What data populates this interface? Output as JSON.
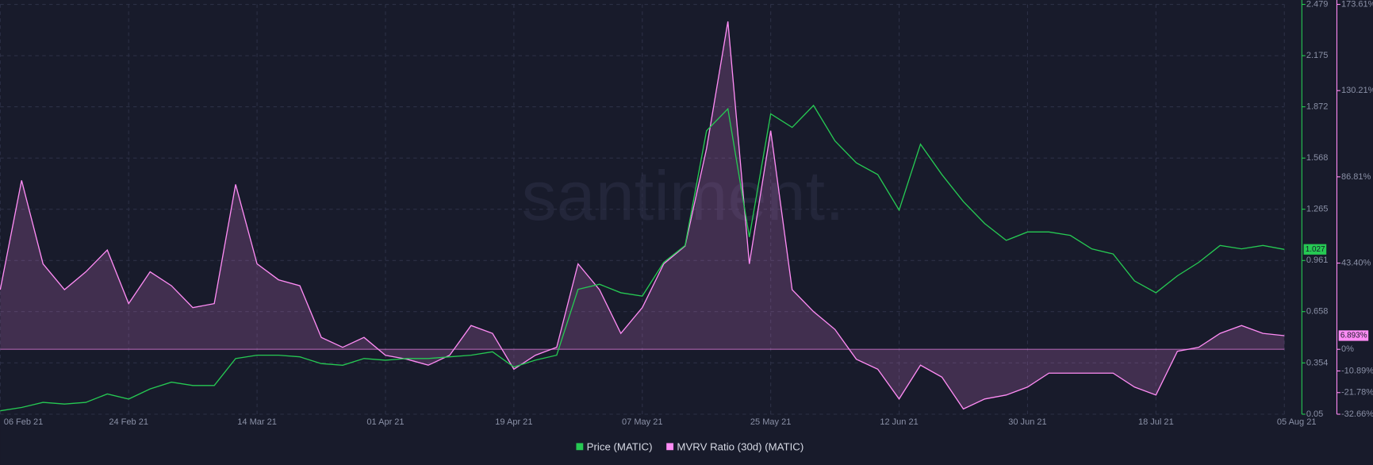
{
  "chart_data": {
    "type": "line",
    "watermark": "santiment.",
    "x": [
      "2021-02-06",
      "2021-02-09",
      "2021-02-12",
      "2021-02-15",
      "2021-02-18",
      "2021-02-21",
      "2021-02-24",
      "2021-02-27",
      "2021-03-02",
      "2021-03-05",
      "2021-03-08",
      "2021-03-11",
      "2021-03-14",
      "2021-03-17",
      "2021-03-20",
      "2021-03-23",
      "2021-03-26",
      "2021-03-29",
      "2021-04-01",
      "2021-04-04",
      "2021-04-07",
      "2021-04-10",
      "2021-04-13",
      "2021-04-16",
      "2021-04-19",
      "2021-04-22",
      "2021-04-25",
      "2021-04-28",
      "2021-05-01",
      "2021-05-04",
      "2021-05-07",
      "2021-05-10",
      "2021-05-13",
      "2021-05-16",
      "2021-05-19",
      "2021-05-22",
      "2021-05-25",
      "2021-05-28",
      "2021-05-31",
      "2021-06-03",
      "2021-06-06",
      "2021-06-09",
      "2021-06-12",
      "2021-06-15",
      "2021-06-18",
      "2021-06-21",
      "2021-06-24",
      "2021-06-27",
      "2021-06-30",
      "2021-07-03",
      "2021-07-06",
      "2021-07-09",
      "2021-07-12",
      "2021-07-15",
      "2021-07-18",
      "2021-07-21",
      "2021-07-24",
      "2021-07-27",
      "2021-07-30",
      "2021-08-02",
      "2021-08-05"
    ],
    "xlim": [
      "2021-02-06",
      "2021-08-05"
    ],
    "xticks": [
      {
        "value": "2021-02-06",
        "label": "06 Feb 21"
      },
      {
        "value": "2021-02-24",
        "label": "24 Feb 21"
      },
      {
        "value": "2021-03-14",
        "label": "14 Mar 21"
      },
      {
        "value": "2021-04-01",
        "label": "01 Apr 21"
      },
      {
        "value": "2021-04-19",
        "label": "19 Apr 21"
      },
      {
        "value": "2021-05-07",
        "label": "07 May 21"
      },
      {
        "value": "2021-05-25",
        "label": "25 May 21"
      },
      {
        "value": "2021-06-12",
        "label": "12 Jun 21"
      },
      {
        "value": "2021-06-30",
        "label": "30 Jun 21"
      },
      {
        "value": "2021-07-18",
        "label": "18 Jul 21"
      },
      {
        "value": "2021-08-05",
        "label": "05 Aug 21"
      }
    ],
    "ylim": [
      0.05,
      2.479
    ],
    "yticks": [
      0.05,
      0.354,
      0.658,
      0.961,
      1.265,
      1.568,
      1.872,
      2.175,
      2.479
    ],
    "y2lim": [
      -32.66,
      173.61
    ],
    "y2ticks": [
      {
        "value": 173.61,
        "label": "173.61%"
      },
      {
        "value": 130.21,
        "label": "130.21%"
      },
      {
        "value": 86.81,
        "label": "86.81%"
      },
      {
        "value": 43.4,
        "label": "43.40%"
      },
      {
        "value": 0,
        "label": "0%"
      },
      {
        "value": -10.89,
        "label": "-10.89%"
      },
      {
        "value": -21.78,
        "label": "-21.78%"
      },
      {
        "value": -32.66,
        "label": "-32.66%"
      }
    ],
    "grid": true,
    "series": [
      {
        "name": "Price (MATIC)",
        "color": "#26c953",
        "current_label": "1.027",
        "values": [
          0.07,
          0.09,
          0.12,
          0.11,
          0.12,
          0.17,
          0.14,
          0.2,
          0.24,
          0.22,
          0.22,
          0.38,
          0.4,
          0.4,
          0.39,
          0.35,
          0.34,
          0.38,
          0.37,
          0.38,
          0.38,
          0.39,
          0.4,
          0.42,
          0.33,
          0.37,
          0.4,
          0.79,
          0.82,
          0.77,
          0.75,
          0.95,
          1.05,
          1.73,
          1.86,
          1.1,
          1.83,
          1.75,
          1.88,
          1.67,
          1.54,
          1.47,
          1.26,
          1.65,
          1.47,
          1.31,
          1.18,
          1.08,
          1.13,
          1.13,
          1.11,
          1.03,
          1.0,
          0.84,
          0.77,
          0.87,
          0.95,
          1.05,
          1.03,
          1.05,
          1.027
        ]
      },
      {
        "name": "MVRV Ratio (30d) (MATIC)",
        "color": "#ff8cf5",
        "axis": "y2",
        "current_label": "6.893%",
        "values": [
          30,
          85,
          43,
          30,
          39,
          50,
          23,
          39,
          32,
          21,
          23,
          83,
          43,
          35,
          32,
          6,
          1,
          6,
          -3,
          -5,
          -8,
          -3,
          12,
          8,
          -10,
          -3,
          1,
          43,
          30,
          8,
          21,
          43,
          52,
          101,
          165,
          43,
          110,
          30,
          19,
          10,
          -5,
          -10,
          -25,
          -8,
          -14,
          -30,
          -25,
          -23,
          -19,
          -12,
          -12,
          -12,
          -12,
          -19,
          -23,
          -1,
          1,
          8,
          12,
          8,
          6.893
        ]
      }
    ]
  }
}
